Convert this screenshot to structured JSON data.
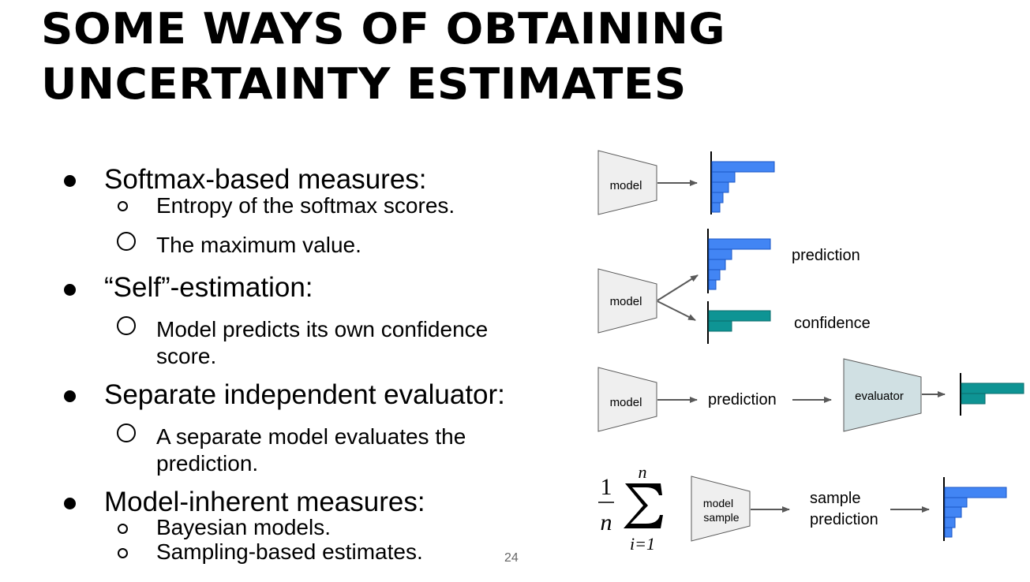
{
  "title": {
    "line1": "SOME WAYS OF OBTAINING",
    "line2": "UNCERTAINTY ESTIMATES"
  },
  "bullets": {
    "softmax": {
      "label": "Softmax-based measures:",
      "subs": [
        "Entropy of the softmax scores.",
        "The maximum value."
      ]
    },
    "self": {
      "label": "“Self”-estimation:",
      "subs": [
        "Model predicts its own confidence",
        "score."
      ]
    },
    "separate": {
      "label": "Separate independent evaluator:",
      "subs": [
        "A separate model evaluates the",
        "prediction."
      ]
    },
    "inherent": {
      "label": "Model-inherent measures:",
      "subs": [
        "Bayesian models.",
        "Sampling-based estimates."
      ]
    }
  },
  "page_number": "24",
  "diagram": {
    "model_label": "model",
    "prediction_label": "prediction",
    "confidence_label": "confidence",
    "evaluator_label": "evaluator",
    "model_sample_line1": "model",
    "model_sample_line2": "sample",
    "sample_prediction_line1": "sample",
    "sample_prediction_line2": "prediction",
    "formula": {
      "numerator": "1",
      "denominator": "n",
      "upper": "n",
      "lower": "i=1"
    },
    "colors": {
      "prediction_bar": "#4285f4",
      "confidence_bar": "#0e9494",
      "model_fill": "#efefef",
      "evaluator_fill": "#d0e0e3"
    }
  }
}
